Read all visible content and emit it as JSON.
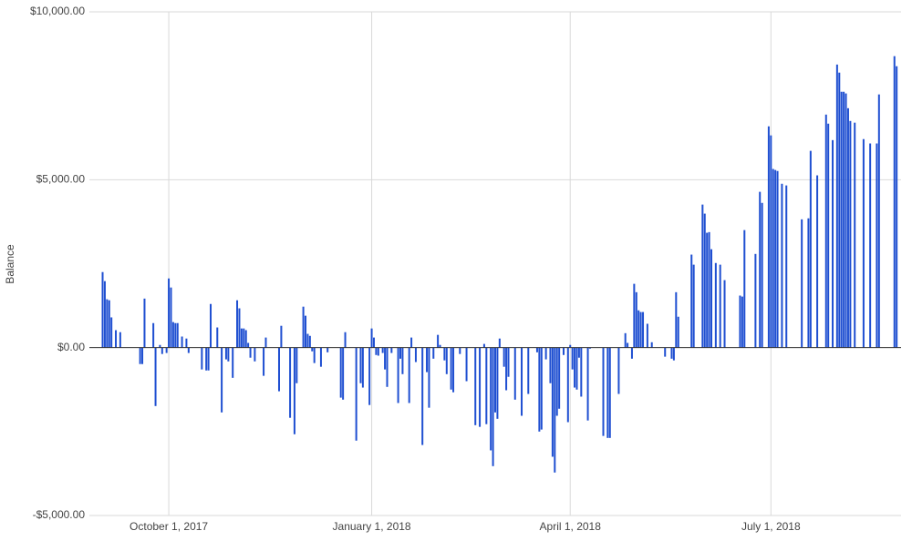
{
  "chart_data": {
    "type": "bar",
    "y_label": "Balance",
    "color": "#1f4fd1",
    "grid": true,
    "xlim": [
      "2017-08-26",
      "2018-08-29"
    ],
    "xticks": [
      {
        "value": "2017-10-01",
        "label": "October 1, 2017"
      },
      {
        "value": "2018-01-01",
        "label": "January 1, 2018"
      },
      {
        "value": "2018-04-01",
        "label": "April 1, 2018"
      },
      {
        "value": "2018-07-01",
        "label": "July 1, 2018"
      }
    ],
    "ylim": [
      -5000,
      10000
    ],
    "yticks": [
      {
        "value": -5000,
        "label": "-$5,000.00"
      },
      {
        "value": 0,
        "label": "$0.00"
      },
      {
        "value": 5000,
        "label": "$5,000.00"
      },
      {
        "value": 10000,
        "label": "$10,000.00"
      }
    ],
    "x": [
      "2017-09-01",
      "2017-09-02",
      "2017-09-03",
      "2017-09-04",
      "2017-09-05",
      "2017-09-07",
      "2017-09-09",
      "2017-09-18",
      "2017-09-19",
      "2017-09-20",
      "2017-09-24",
      "2017-09-25",
      "2017-09-27",
      "2017-09-28",
      "2017-09-30",
      "2017-10-01",
      "2017-10-02",
      "2017-10-03",
      "2017-10-04",
      "2017-10-05",
      "2017-10-07",
      "2017-10-09",
      "2017-10-10",
      "2017-10-16",
      "2017-10-18",
      "2017-10-19",
      "2017-10-20",
      "2017-10-23",
      "2017-10-25",
      "2017-10-27",
      "2017-10-28",
      "2017-10-30",
      "2017-11-01",
      "2017-11-02",
      "2017-11-03",
      "2017-11-04",
      "2017-11-05",
      "2017-11-06",
      "2017-11-07",
      "2017-11-09",
      "2017-11-13",
      "2017-11-14",
      "2017-11-20",
      "2017-11-21",
      "2017-11-25",
      "2017-11-27",
      "2017-11-28",
      "2017-12-01",
      "2017-12-02",
      "2017-12-03",
      "2017-12-04",
      "2017-12-05",
      "2017-12-06",
      "2017-12-09",
      "2017-12-12",
      "2017-12-18",
      "2017-12-19",
      "2017-12-20",
      "2017-12-25",
      "2017-12-27",
      "2017-12-28",
      "2017-12-31",
      "2018-01-01",
      "2018-01-02",
      "2018-01-03",
      "2018-01-04",
      "2018-01-06",
      "2018-01-07",
      "2018-01-08",
      "2018-01-10",
      "2018-01-13",
      "2018-01-14",
      "2018-01-15",
      "2018-01-18",
      "2018-01-19",
      "2018-01-21",
      "2018-01-24",
      "2018-01-26",
      "2018-01-27",
      "2018-01-29",
      "2018-01-31",
      "2018-02-01",
      "2018-02-03",
      "2018-02-04",
      "2018-02-06",
      "2018-02-07",
      "2018-02-10",
      "2018-02-13",
      "2018-02-17",
      "2018-02-19",
      "2018-02-21",
      "2018-02-22",
      "2018-02-24",
      "2018-02-25",
      "2018-02-26",
      "2018-02-27",
      "2018-02-28",
      "2018-03-02",
      "2018-03-03",
      "2018-03-04",
      "2018-03-07",
      "2018-03-10",
      "2018-03-13",
      "2018-03-17",
      "2018-03-18",
      "2018-03-19",
      "2018-03-21",
      "2018-03-23",
      "2018-03-24",
      "2018-03-25",
      "2018-03-26",
      "2018-03-27",
      "2018-03-29",
      "2018-03-31",
      "2018-04-01",
      "2018-04-02",
      "2018-04-03",
      "2018-04-04",
      "2018-04-05",
      "2018-04-06",
      "2018-04-09",
      "2018-04-10",
      "2018-04-16",
      "2018-04-18",
      "2018-04-19",
      "2018-04-23",
      "2018-04-26",
      "2018-04-27",
      "2018-04-29",
      "2018-04-30",
      "2018-05-01",
      "2018-05-02",
      "2018-05-03",
      "2018-05-04",
      "2018-05-06",
      "2018-05-08",
      "2018-05-14",
      "2018-05-17",
      "2018-05-18",
      "2018-05-19",
      "2018-05-20",
      "2018-05-26",
      "2018-05-27",
      "2018-05-31",
      "2018-06-01",
      "2018-06-02",
      "2018-06-03",
      "2018-06-04",
      "2018-06-06",
      "2018-06-08",
      "2018-06-10",
      "2018-06-17",
      "2018-06-18",
      "2018-06-19",
      "2018-06-24",
      "2018-06-26",
      "2018-06-27",
      "2018-06-30",
      "2018-07-01",
      "2018-07-02",
      "2018-07-03",
      "2018-07-04",
      "2018-07-06",
      "2018-07-08",
      "2018-07-15",
      "2018-07-18",
      "2018-07-19",
      "2018-07-22",
      "2018-07-26",
      "2018-07-27",
      "2018-07-29",
      "2018-07-31",
      "2018-08-01",
      "2018-08-02",
      "2018-08-03",
      "2018-08-04",
      "2018-08-05",
      "2018-08-06",
      "2018-08-08",
      "2018-08-12",
      "2018-08-15",
      "2018-08-18",
      "2018-08-19",
      "2018-08-26",
      "2018-08-27"
    ],
    "values": [
      2250,
      1980,
      1440,
      1410,
      900,
      520,
      460,
      -490,
      -490,
      1460,
      730,
      -1740,
      80,
      -190,
      -160,
      2060,
      1790,
      760,
      730,
      730,
      330,
      270,
      -160,
      -650,
      -680,
      -680,
      1300,
      600,
      -1930,
      -350,
      -410,
      -900,
      1410,
      1170,
      570,
      570,
      520,
      140,
      -300,
      -410,
      -840,
      300,
      -1300,
      650,
      -2090,
      -2580,
      -1060,
      1220,
      950,
      410,
      350,
      -110,
      -460,
      -570,
      -140,
      -1490,
      -1550,
      460,
      -2770,
      -1060,
      -1190,
      -1710,
      570,
      300,
      -220,
      -240,
      -160,
      -650,
      -1170,
      -160,
      -1650,
      -330,
      -790,
      -1650,
      300,
      -430,
      -2900,
      -730,
      -1790,
      -330,
      380,
      80,
      -380,
      -790,
      -1250,
      -1330,
      -190,
      -1000,
      -2310,
      -2360,
      110,
      -2280,
      -3060,
      -3530,
      -1930,
      -2120,
      270,
      -570,
      -1270,
      -870,
      -1550,
      -2030,
      -1380,
      -140,
      -2500,
      -2440,
      -350,
      -1060,
      -3250,
      -3720,
      -2030,
      -1820,
      -220,
      -2220,
      80,
      -650,
      -1190,
      -1250,
      -300,
      -1460,
      -2170,
      -30,
      -2630,
      -2690,
      -2690,
      -1380,
      430,
      140,
      -330,
      1900,
      1650,
      1110,
      1060,
      1060,
      710,
      160,
      -270,
      -330,
      -380,
      1650,
      920,
      2770,
      2470,
      4260,
      3990,
      3420,
      3440,
      2930,
      2520,
      2470,
      2010,
      1550,
      1520,
      3500,
      2790,
      4640,
      4310,
      6590,
      6320,
      5320,
      5290,
      5260,
      4880,
      4830,
      3820,
      3850,
      5860,
      5130,
      6940,
      6670,
      6180,
      8430,
      8190,
      7620,
      7620,
      7570,
      7130,
      6750,
      6700,
      6210,
      6080,
      6080,
      7540,
      8680,
      8380
    ]
  }
}
